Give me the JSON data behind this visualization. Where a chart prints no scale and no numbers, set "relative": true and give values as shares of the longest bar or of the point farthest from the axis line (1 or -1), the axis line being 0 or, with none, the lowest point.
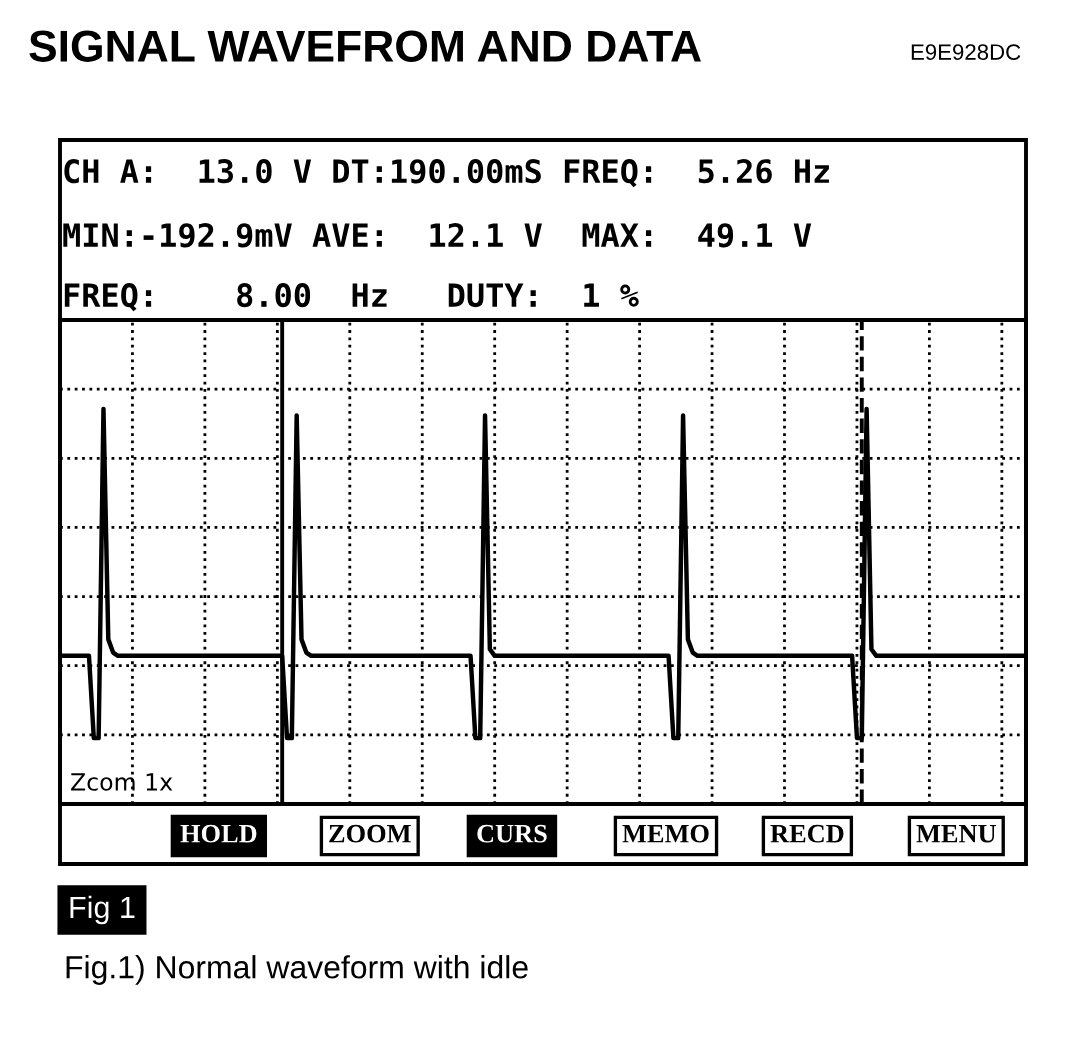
{
  "chart_data": {
    "type": "line",
    "relative": true,
    "title": "SIGNAL WAVEFROM AND DATA",
    "annotations": [
      "E9E928DC",
      "CH A:  13.0 V DT:190.00mS FREQ:  5.26 Hz",
      "MIN:-192.9mV AVE:  12.1 V  MAX:  49.1 V",
      "FREQ:    8.00  Hz   DUTY:  1 %",
      "Zcom 1x",
      "HOLD",
      "ZOOM",
      "CURS",
      "MEMO",
      "RECD",
      "MENU",
      "Fig 1",
      "Fig.1) Normal waveform with idle"
    ],
    "categories": [
      null,
      null,
      null,
      null,
      null,
      null,
      null,
      null,
      null,
      null,
      null,
      null,
      null,
      null,
      null,
      null,
      null,
      null,
      null,
      null,
      null,
      null,
      null,
      null,
      null,
      null,
      null,
      null,
      null,
      null,
      null,
      null,
      null,
      null,
      null,
      null,
      null,
      null,
      null,
      null,
      null,
      null,
      null,
      null,
      null,
      null,
      null,
      null,
      null,
      null,
      null,
      null,
      null,
      null,
      null,
      null,
      null,
      null,
      null,
      null,
      null,
      null,
      null,
      null,
      null,
      null,
      null,
      null,
      null,
      null,
      null,
      null,
      null,
      null,
      null,
      null,
      null,
      null,
      null,
      null,
      null,
      null,
      null,
      null,
      null,
      null,
      null,
      null,
      null,
      null,
      null,
      null,
      null,
      null,
      null,
      null,
      null,
      null,
      null,
      null,
      null,
      null,
      null,
      null,
      null,
      null,
      null,
      null,
      null,
      null,
      null,
      null,
      null,
      null,
      null,
      null,
      null,
      null,
      null,
      null,
      null,
      null,
      null,
      null,
      null,
      null,
      null,
      null,
      null,
      null,
      null,
      null,
      null,
      null,
      null,
      null,
      null,
      null,
      null,
      null,
      null,
      null,
      null,
      null,
      null,
      null,
      null,
      null,
      null,
      null,
      null,
      null,
      null,
      null,
      null,
      null,
      null,
      null,
      null,
      null,
      null,
      null,
      null,
      null,
      null,
      null,
      null,
      null,
      null,
      null,
      null,
      null,
      null,
      null,
      null,
      null,
      null,
      null,
      null,
      null,
      null,
      null,
      null,
      null,
      null,
      null,
      null,
      null,
      null,
      null,
      null,
      null,
      null,
      null,
      null,
      null,
      null,
      null,
      null,
      null,
      null
    ],
    "grid": true,
    "series": [
      {
        "color": "#000000",
        "values": [
          0.25,
          0.25,
          0.25,
          0.25,
          0.25,
          0.25,
          0.25,
          0,
          0,
          1.0,
          0.3,
          0.26,
          0.25,
          0.25,
          0.25,
          0.25,
          0.25,
          0.25,
          0.25,
          0.25,
          0.25,
          0.25,
          0.25,
          0.25,
          0.25,
          0.25,
          0.25,
          0.25,
          0.25,
          0.25,
          0.25,
          0.25,
          0.25,
          0.25,
          0.25,
          0.25,
          0.25,
          0.25,
          0.25,
          0.25,
          0.25,
          0.25,
          0.25,
          0.25,
          0.25,
          0.25,
          0.25,
          0,
          0,
          0.98,
          0.3,
          0.26,
          0.25,
          0.25,
          0.25,
          0.25,
          0.25,
          0.25,
          0.25,
          0.25,
          0.25,
          0.25,
          0.25,
          0.25,
          0.25,
          0.25,
          0.25,
          0.25,
          0.25,
          0.25,
          0.25,
          0.25,
          0.25,
          0.25,
          0.25,
          0.25,
          0.25,
          0.25,
          0.25,
          0.25,
          0.25,
          0.25,
          0.25,
          0.25,
          0.25,
          0.25,
          0,
          0,
          0.98,
          0.27,
          0.25,
          0.25,
          0.25,
          0.25,
          0.25,
          0.25,
          0.25,
          0.25,
          0.25,
          0.25,
          0.25,
          0.25,
          0.25,
          0.25,
          0.25,
          0.25,
          0.25,
          0.25,
          0.25,
          0.25,
          0.25,
          0.25,
          0.25,
          0.25,
          0.25,
          0.25,
          0.25,
          0.25,
          0.25,
          0.25,
          0.25,
          0.25,
          0.25,
          0.25,
          0.25,
          0.25,
          0.25,
          0,
          0,
          0.98,
          0.3,
          0.26,
          0.25,
          0.25,
          0.25,
          0.25,
          0.25,
          0.25,
          0.25,
          0.25,
          0.25,
          0.25,
          0.25,
          0.25,
          0.25,
          0.25,
          0.25,
          0.25,
          0.25,
          0.25,
          0.25,
          0.25,
          0.25,
          0.25,
          0.25,
          0.25,
          0.25,
          0.25,
          0.25,
          0.25,
          0.25,
          0.25,
          0.25,
          0.25,
          0.25,
          0,
          0,
          1.0,
          0.27,
          0.25,
          0.25,
          0.25,
          0.25,
          0.25,
          0.25,
          0.25,
          0.25,
          0.25,
          0.25,
          0.25,
          0.25,
          0.25,
          0.25,
          0.25,
          0.25,
          0.25,
          0.25,
          0.25,
          0.25,
          0.25,
          0.25,
          0.25,
          0.25,
          0.25,
          0.25,
          0.25,
          0.25,
          0.25,
          0.25,
          0.25,
          0.25
        ]
      }
    ]
  }
}
